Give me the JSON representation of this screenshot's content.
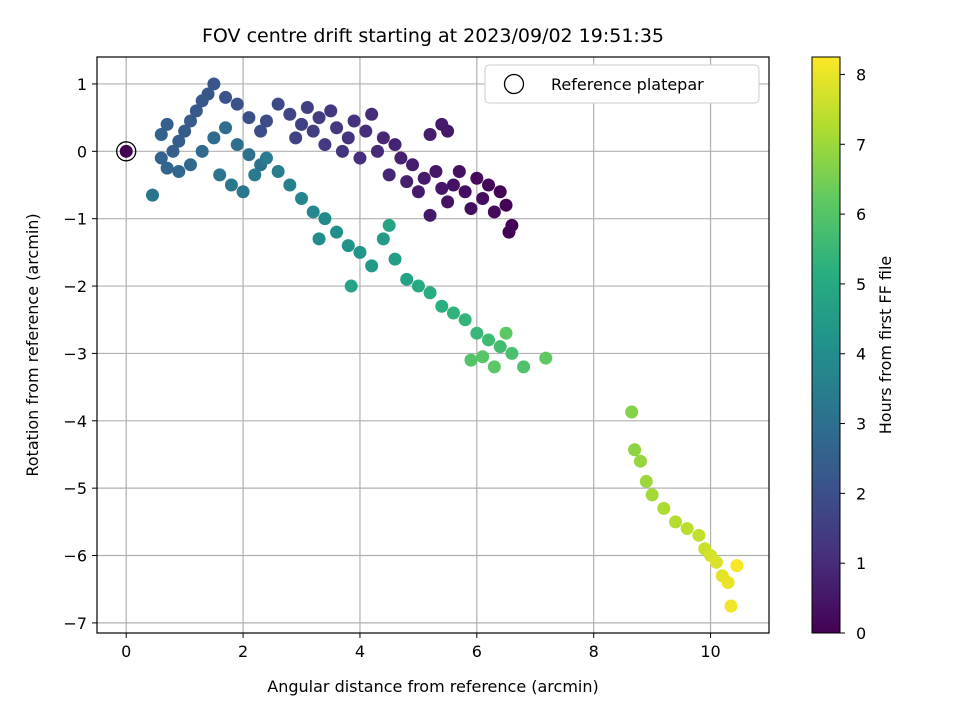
{
  "chart_data": {
    "type": "scatter",
    "title": "FOV centre drift starting at 2023/09/02 19:51:35",
    "xlabel": "Angular distance from reference (arcmin)",
    "ylabel": "Rotation from reference (arcmin)",
    "xlim": [
      -0.5,
      11
    ],
    "ylim": [
      -7.15,
      1.4
    ],
    "xticks": [
      0,
      2,
      4,
      6,
      8,
      10
    ],
    "yticks": [
      1,
      0,
      -1,
      -2,
      -3,
      -4,
      -5,
      -6,
      -7
    ],
    "grid": true,
    "colormap": "viridis",
    "colorbar": {
      "label": "Hours from first FF file",
      "range": [
        0,
        8.25
      ],
      "ticks": [
        0,
        1,
        2,
        3,
        4,
        5,
        6,
        7,
        8
      ]
    },
    "legend": {
      "position": "top-right",
      "entries": [
        {
          "label": "Reference platepar",
          "marker": "open-circle"
        }
      ]
    },
    "reference_point": {
      "x": 0,
      "y": 0
    },
    "series": [
      {
        "columns": [
          "x",
          "y",
          "hours"
        ],
        "points": [
          [
            0.0,
            0.0,
            0.0
          ],
          [
            6.5,
            -0.8,
            0.05
          ],
          [
            6.6,
            -1.1,
            0.05
          ],
          [
            6.4,
            -0.6,
            0.1
          ],
          [
            6.2,
            -0.5,
            0.15
          ],
          [
            6.0,
            -0.4,
            0.2
          ],
          [
            6.55,
            -1.2,
            0.1
          ],
          [
            6.3,
            -0.9,
            0.2
          ],
          [
            6.1,
            -0.7,
            0.3
          ],
          [
            5.9,
            -0.85,
            0.3
          ],
          [
            5.8,
            -0.6,
            0.35
          ],
          [
            5.6,
            -0.5,
            0.4
          ],
          [
            5.7,
            -0.3,
            0.4
          ],
          [
            5.5,
            -0.75,
            0.45
          ],
          [
            5.4,
            -0.55,
            0.5
          ],
          [
            5.3,
            -0.3,
            0.5
          ],
          [
            5.2,
            -0.95,
            0.55
          ],
          [
            5.1,
            -0.4,
            0.6
          ],
          [
            5.0,
            -0.6,
            0.6
          ],
          [
            4.9,
            -0.2,
            0.65
          ],
          [
            4.8,
            -0.45,
            0.7
          ],
          [
            5.4,
            0.4,
            0.6
          ],
          [
            5.5,
            0.3,
            0.55
          ],
          [
            5.2,
            0.25,
            0.65
          ],
          [
            4.7,
            -0.1,
            0.75
          ],
          [
            4.6,
            0.1,
            0.8
          ],
          [
            4.5,
            -0.35,
            0.85
          ],
          [
            4.4,
            0.2,
            0.9
          ],
          [
            4.3,
            0.0,
            0.95
          ],
          [
            4.2,
            0.55,
            1.0
          ],
          [
            4.1,
            0.3,
            1.05
          ],
          [
            4.0,
            -0.1,
            1.1
          ],
          [
            3.9,
            0.45,
            1.15
          ],
          [
            3.8,
            0.2,
            1.2
          ],
          [
            3.7,
            0.0,
            1.25
          ],
          [
            3.6,
            0.35,
            1.3
          ],
          [
            3.5,
            0.6,
            1.35
          ],
          [
            3.4,
            0.1,
            1.4
          ],
          [
            3.3,
            0.5,
            1.45
          ],
          [
            3.2,
            0.3,
            1.5
          ],
          [
            3.1,
            0.65,
            1.55
          ],
          [
            3.0,
            0.4,
            1.6
          ],
          [
            2.9,
            0.2,
            1.65
          ],
          [
            2.8,
            0.55,
            1.7
          ],
          [
            2.6,
            0.7,
            1.8
          ],
          [
            2.4,
            0.45,
            1.9
          ],
          [
            2.3,
            0.3,
            1.95
          ],
          [
            2.1,
            0.5,
            2.0
          ],
          [
            1.9,
            0.7,
            2.05
          ],
          [
            1.7,
            0.8,
            2.1
          ],
          [
            1.5,
            1.0,
            2.15
          ],
          [
            1.4,
            0.85,
            2.2
          ],
          [
            1.3,
            0.75,
            2.25
          ],
          [
            1.2,
            0.6,
            2.3
          ],
          [
            1.1,
            0.45,
            2.35
          ],
          [
            1.0,
            0.3,
            2.4
          ],
          [
            0.9,
            0.15,
            2.45
          ],
          [
            0.8,
            0.0,
            2.5
          ],
          [
            0.7,
            0.4,
            2.55
          ],
          [
            0.6,
            0.25,
            2.6
          ],
          [
            0.6,
            -0.1,
            2.65
          ],
          [
            0.7,
            -0.25,
            2.7
          ],
          [
            0.9,
            -0.3,
            2.75
          ],
          [
            1.1,
            -0.2,
            2.8
          ],
          [
            1.3,
            0.0,
            2.85
          ],
          [
            1.5,
            0.2,
            2.9
          ],
          [
            1.7,
            0.35,
            2.95
          ],
          [
            1.9,
            0.1,
            3.0
          ],
          [
            2.1,
            -0.05,
            3.05
          ],
          [
            2.3,
            -0.2,
            3.1
          ],
          [
            0.45,
            -0.65,
            3.15
          ],
          [
            1.6,
            -0.35,
            3.2
          ],
          [
            1.8,
            -0.5,
            3.25
          ],
          [
            2.0,
            -0.6,
            3.3
          ],
          [
            2.2,
            -0.35,
            3.35
          ],
          [
            2.4,
            -0.1,
            3.4
          ],
          [
            2.6,
            -0.3,
            3.5
          ],
          [
            2.8,
            -0.5,
            3.6
          ],
          [
            3.0,
            -0.7,
            3.7
          ],
          [
            3.2,
            -0.9,
            3.8
          ],
          [
            3.4,
            -1.0,
            3.9
          ],
          [
            3.3,
            -1.3,
            4.0
          ],
          [
            3.6,
            -1.2,
            4.1
          ],
          [
            3.8,
            -1.4,
            4.2
          ],
          [
            4.0,
            -1.5,
            4.3
          ],
          [
            4.2,
            -1.7,
            4.4
          ],
          [
            4.4,
            -1.3,
            4.5
          ],
          [
            4.6,
            -1.6,
            4.6
          ],
          [
            4.8,
            -1.9,
            4.7
          ],
          [
            3.85,
            -2.0,
            4.75
          ],
          [
            4.5,
            -1.1,
            4.8
          ],
          [
            5.0,
            -2.0,
            5.0
          ],
          [
            5.2,
            -2.1,
            5.1
          ],
          [
            5.4,
            -2.3,
            5.2
          ],
          [
            5.6,
            -2.4,
            5.3
          ],
          [
            5.8,
            -2.5,
            5.4
          ],
          [
            6.0,
            -2.7,
            5.5
          ],
          [
            6.2,
            -2.8,
            5.6
          ],
          [
            6.4,
            -2.9,
            5.7
          ],
          [
            6.6,
            -3.0,
            5.8
          ],
          [
            6.8,
            -3.2,
            5.9
          ],
          [
            5.9,
            -3.1,
            6.0
          ],
          [
            6.1,
            -3.05,
            6.05
          ],
          [
            6.3,
            -3.2,
            6.1
          ],
          [
            6.5,
            -2.7,
            6.15
          ],
          [
            7.18,
            -3.07,
            6.2
          ],
          [
            8.65,
            -3.87,
            6.7
          ],
          [
            8.7,
            -4.43,
            6.8
          ],
          [
            8.8,
            -4.6,
            6.9
          ],
          [
            8.9,
            -4.9,
            7.0
          ],
          [
            9.0,
            -5.1,
            7.1
          ],
          [
            9.2,
            -5.3,
            7.2
          ],
          [
            9.4,
            -5.5,
            7.3
          ],
          [
            9.6,
            -5.6,
            7.4
          ],
          [
            9.8,
            -5.7,
            7.5
          ],
          [
            9.9,
            -5.9,
            7.6
          ],
          [
            10.0,
            -6.0,
            7.7
          ],
          [
            10.1,
            -6.1,
            7.8
          ],
          [
            10.2,
            -6.3,
            7.9
          ],
          [
            10.3,
            -6.4,
            8.0
          ],
          [
            10.35,
            -6.75,
            8.1
          ],
          [
            10.45,
            -6.15,
            8.2
          ]
        ]
      }
    ]
  }
}
